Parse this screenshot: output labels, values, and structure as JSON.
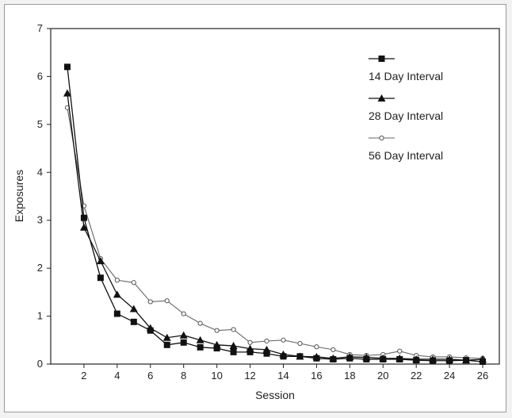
{
  "chart_data": {
    "type": "line",
    "title": "",
    "xlabel": "Session",
    "ylabel": "Exposures",
    "xlim": [
      0,
      27
    ],
    "ylim": [
      0,
      7
    ],
    "x_ticks": [
      2,
      4,
      6,
      8,
      10,
      12,
      14,
      16,
      18,
      20,
      22,
      24,
      26
    ],
    "y_ticks": [
      0,
      1,
      2,
      3,
      4,
      5,
      6,
      7
    ],
    "grid": false,
    "legend_position": "top-right",
    "x": [
      1,
      2,
      3,
      4,
      5,
      6,
      7,
      8,
      9,
      10,
      11,
      12,
      13,
      14,
      15,
      16,
      17,
      18,
      19,
      20,
      21,
      22,
      23,
      24,
      25,
      26
    ],
    "series": [
      {
        "name": "14 Day Interval",
        "marker": "square",
        "values": [
          6.2,
          3.05,
          1.8,
          1.05,
          0.88,
          0.7,
          0.4,
          0.45,
          0.35,
          0.33,
          0.25,
          0.25,
          0.22,
          0.16,
          0.16,
          0.12,
          0.1,
          0.12,
          0.1,
          0.1,
          0.1,
          0.08,
          0.07,
          0.07,
          0.08,
          0.05
        ]
      },
      {
        "name": "28 Day Interval",
        "marker": "triangle",
        "values": [
          5.65,
          2.85,
          2.15,
          1.45,
          1.15,
          0.75,
          0.55,
          0.6,
          0.5,
          0.4,
          0.38,
          0.32,
          0.3,
          0.2,
          0.16,
          0.15,
          0.12,
          0.15,
          0.14,
          0.12,
          0.12,
          0.1,
          0.1,
          0.1,
          0.08,
          0.1
        ]
      },
      {
        "name": "56 Day Interval",
        "marker": "open-circle",
        "values": [
          5.35,
          3.3,
          2.2,
          1.75,
          1.7,
          1.3,
          1.32,
          1.05,
          0.85,
          0.7,
          0.72,
          0.45,
          0.48,
          0.5,
          0.43,
          0.36,
          0.3,
          0.2,
          0.18,
          0.2,
          0.27,
          0.18,
          0.15,
          0.15,
          0.13,
          0.12
        ]
      }
    ]
  }
}
